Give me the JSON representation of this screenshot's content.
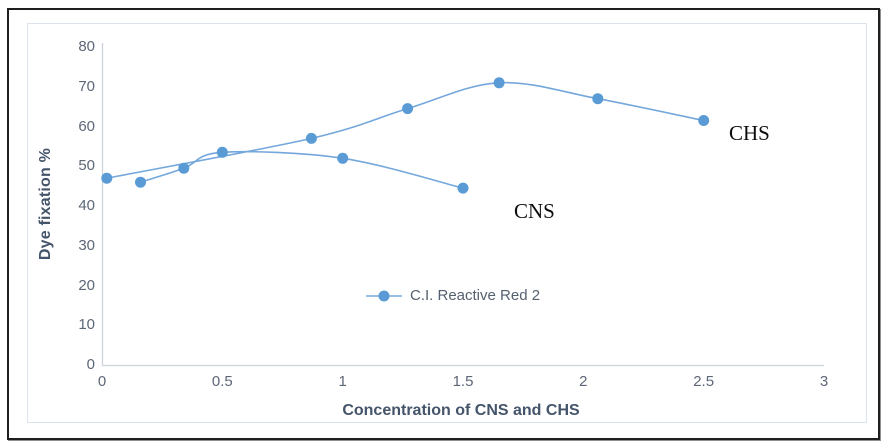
{
  "chart_data": {
    "type": "line",
    "title": "",
    "xlabel": "Concentration of CNS and CHS",
    "ylabel": "Dye fixation %",
    "xlim": [
      0,
      3
    ],
    "ylim": [
      0,
      80
    ],
    "grid": false,
    "x_ticks": [
      "0",
      "0.5",
      "1",
      "1.5",
      "2",
      "2.5",
      "3"
    ],
    "x_tick_values": [
      0,
      0.5,
      1,
      1.5,
      2,
      2.5,
      3
    ],
    "y_ticks": [
      "0",
      "10",
      "20",
      "30",
      "40",
      "50",
      "60",
      "70",
      "80"
    ],
    "y_tick_values": [
      0,
      10,
      20,
      30,
      40,
      50,
      60,
      70,
      80
    ],
    "legend": {
      "position": "center-bottom",
      "entries": [
        "C.I. Reactive Red 2"
      ]
    },
    "series": [
      {
        "name": "CHS",
        "points": [
          [
            0.02,
            47
          ],
          [
            0.87,
            57
          ],
          [
            1.27,
            64.5
          ],
          [
            1.65,
            71
          ],
          [
            2.06,
            67
          ],
          [
            2.5,
            61.5
          ]
        ]
      },
      {
        "name": "CNS",
        "points": [
          [
            0.16,
            46
          ],
          [
            0.34,
            49.5
          ],
          [
            0.5,
            53.5
          ],
          [
            1.0,
            52
          ],
          [
            1.5,
            44.5
          ]
        ]
      }
    ],
    "annotations": [
      {
        "text": "CHS",
        "x": 2.6,
        "y": 57
      },
      {
        "text": "CNS",
        "x": 1.71,
        "y": 38.5
      }
    ],
    "colors": {
      "line": "#74a7dc",
      "marker": "#5a9bd5",
      "axis_line": "#ccd3db",
      "tick_text": "#5d6777",
      "axis_title_text": "#44546A",
      "annotation_text": "#0d0d0d",
      "chart_border": "#dde3eb"
    }
  }
}
